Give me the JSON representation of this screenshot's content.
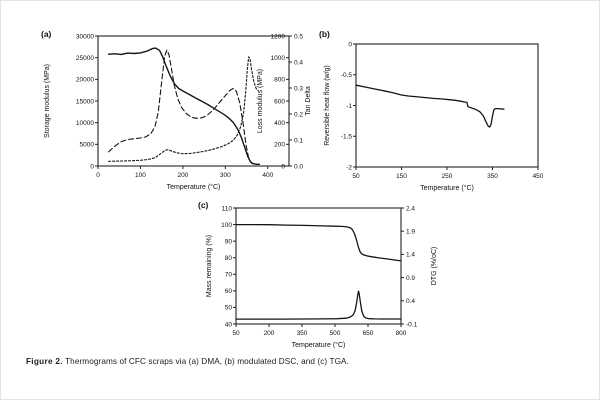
{
  "figure": {
    "caption_label": "Figure 2.",
    "caption_text": "Thermograms of CFC scraps via (a) DMA, (b) modulated DSC, and (c) TGA."
  },
  "chart_data": [
    {
      "id": "dma",
      "panel_label": "(a)",
      "type": "line",
      "xlabel": "Temperature (°C)",
      "x_axis": {
        "min": 0,
        "max": 450,
        "tick_values": [
          0,
          100,
          200,
          300,
          400
        ],
        "tick_labels": [
          "0",
          "100",
          "200",
          "300",
          "400"
        ]
      },
      "y_axes": [
        {
          "id": "storage",
          "side": "left",
          "label": "Storage modulus (MPa)",
          "min": 0,
          "max": 30000,
          "tick_values": [
            0,
            5000,
            10000,
            15000,
            20000,
            25000,
            30000
          ],
          "tick_labels": [
            "0",
            "5000",
            "10000",
            "15000",
            "20000",
            "25000",
            "30000"
          ]
        },
        {
          "id": "loss",
          "side": "right-in",
          "label": "Loss modulus (MPa)",
          "min": 0,
          "max": 1200,
          "tick_values": [
            0,
            200,
            400,
            600,
            800,
            1000,
            1200
          ],
          "tick_labels": [
            "0",
            "200",
            "400",
            "600",
            "800",
            "1000",
            "1200"
          ]
        },
        {
          "id": "tan",
          "side": "right-out",
          "label": "Tan Delta",
          "min": 0,
          "max": 0.5,
          "tick_values": [
            0,
            0.1,
            0.2,
            0.3,
            0.4,
            0.5
          ],
          "tick_labels": [
            "0.0",
            "0.1",
            "0.2",
            "0.3",
            "0.4",
            "0.5"
          ]
        }
      ],
      "series": [
        {
          "id": "storage",
          "name": "Storage modulus",
          "axis": "storage",
          "dash": "solid",
          "width": 1.4,
          "points": [
            [
              25,
              25800
            ],
            [
              40,
              25900
            ],
            [
              55,
              25750
            ],
            [
              70,
              26050
            ],
            [
              85,
              25950
            ],
            [
              100,
              26100
            ],
            [
              115,
              26500
            ],
            [
              128,
              27100
            ],
            [
              136,
              27200
            ],
            [
              145,
              26700
            ],
            [
              152,
              25300
            ],
            [
              160,
              23200
            ],
            [
              170,
              20800
            ],
            [
              180,
              19000
            ],
            [
              190,
              17900
            ],
            [
              200,
              17300
            ],
            [
              215,
              16500
            ],
            [
              230,
              15700
            ],
            [
              245,
              14900
            ],
            [
              260,
              14100
            ],
            [
              275,
              13200
            ],
            [
              290,
              12300
            ],
            [
              300,
              11700
            ],
            [
              310,
              10900
            ],
            [
              320,
              9900
            ],
            [
              330,
              8300
            ],
            [
              338,
              6500
            ],
            [
              346,
              4200
            ],
            [
              353,
              2200
            ],
            [
              359,
              1000
            ],
            [
              365,
              550
            ],
            [
              372,
              420
            ],
            [
              380,
              400
            ]
          ]
        },
        {
          "id": "loss",
          "name": "Loss modulus",
          "axis": "loss",
          "dash": "long",
          "width": 1.1,
          "points": [
            [
              25,
              130
            ],
            [
              40,
              185
            ],
            [
              55,
              225
            ],
            [
              70,
              245
            ],
            [
              85,
              252
            ],
            [
              100,
              258
            ],
            [
              112,
              268
            ],
            [
              124,
              295
            ],
            [
              134,
              360
            ],
            [
              142,
              500
            ],
            [
              150,
              780
            ],
            [
              157,
              1010
            ],
            [
              162,
              1070
            ],
            [
              167,
              1030
            ],
            [
              173,
              900
            ],
            [
              180,
              740
            ],
            [
              188,
              620
            ],
            [
              197,
              540
            ],
            [
              208,
              485
            ],
            [
              220,
              450
            ],
            [
              232,
              440
            ],
            [
              245,
              445
            ],
            [
              258,
              470
            ],
            [
              272,
              520
            ],
            [
              286,
              585
            ],
            [
              300,
              650
            ],
            [
              310,
              695
            ],
            [
              318,
              715
            ],
            [
              326,
              690
            ],
            [
              334,
              580
            ],
            [
              342,
              390
            ],
            [
              349,
              190
            ],
            [
              355,
              70
            ],
            [
              362,
              25
            ],
            [
              370,
              18
            ],
            [
              378,
              15
            ]
          ]
        },
        {
          "id": "tan",
          "name": "Tan delta",
          "axis": "tan",
          "dash": "short",
          "width": 1.1,
          "points": [
            [
              25,
              0.018
            ],
            [
              50,
              0.019
            ],
            [
              75,
              0.02
            ],
            [
              100,
              0.022
            ],
            [
              118,
              0.025
            ],
            [
              135,
              0.032
            ],
            [
              148,
              0.048
            ],
            [
              158,
              0.06
            ],
            [
              165,
              0.063
            ],
            [
              172,
              0.058
            ],
            [
              185,
              0.051
            ],
            [
              200,
              0.047
            ],
            [
              215,
              0.048
            ],
            [
              230,
              0.051
            ],
            [
              245,
              0.055
            ],
            [
              260,
              0.06
            ],
            [
              275,
              0.066
            ],
            [
              290,
              0.074
            ],
            [
              305,
              0.084
            ],
            [
              318,
              0.098
            ],
            [
              328,
              0.118
            ],
            [
              336,
              0.15
            ],
            [
              343,
              0.205
            ],
            [
              348,
              0.285
            ],
            [
              352,
              0.375
            ],
            [
              355,
              0.42
            ],
            [
              358,
              0.412
            ],
            [
              362,
              0.37
            ],
            [
              367,
              0.325
            ],
            [
              372,
              0.3
            ],
            [
              377,
              0.29
            ]
          ]
        }
      ]
    },
    {
      "id": "dsc",
      "panel_label": "(b)",
      "type": "line",
      "xlabel": "Temperature (°C)",
      "x_axis": {
        "min": 50,
        "max": 450,
        "tick_values": [
          50,
          150,
          250,
          350,
          450
        ],
        "tick_labels": [
          "50",
          "150",
          "250",
          "350",
          "450"
        ]
      },
      "y_axes": [
        {
          "id": "heat",
          "side": "left",
          "label": "Reversible heat flow (w/g)",
          "min": -2,
          "max": 0,
          "tick_values": [
            0,
            -0.5,
            -1,
            -1.5,
            -2
          ],
          "tick_labels": [
            "0",
            "-0.5",
            "-1",
            "-1.5",
            "-2"
          ]
        }
      ],
      "series": [
        {
          "id": "heat",
          "name": "Reversible heat flow",
          "axis": "heat",
          "dash": "solid",
          "width": 1.3,
          "points": [
            [
              50,
              -0.67
            ],
            [
              70,
              -0.7
            ],
            [
              90,
              -0.73
            ],
            [
              110,
              -0.76
            ],
            [
              130,
              -0.79
            ],
            [
              150,
              -0.83
            ],
            [
              165,
              -0.845
            ],
            [
              180,
              -0.855
            ],
            [
              200,
              -0.87
            ],
            [
              220,
              -0.885
            ],
            [
              240,
              -0.895
            ],
            [
              255,
              -0.905
            ],
            [
              268,
              -0.915
            ],
            [
              280,
              -0.93
            ],
            [
              290,
              -0.945
            ],
            [
              294,
              -0.95
            ],
            [
              296,
              -1.02
            ],
            [
              302,
              -1.035
            ],
            [
              312,
              -1.06
            ],
            [
              322,
              -1.1
            ],
            [
              330,
              -1.17
            ],
            [
              336,
              -1.27
            ],
            [
              341,
              -1.34
            ],
            [
              344,
              -1.35
            ],
            [
              347,
              -1.3
            ],
            [
              350,
              -1.17
            ],
            [
              353,
              -1.07
            ],
            [
              356,
              -1.05
            ],
            [
              362,
              -1.05
            ],
            [
              368,
              -1.055
            ],
            [
              375,
              -1.06
            ]
          ]
        }
      ]
    },
    {
      "id": "tga",
      "panel_label": "(c)",
      "type": "line",
      "xlabel": "Temperature (°C)",
      "x_axis": {
        "min": 50,
        "max": 800,
        "tick_values": [
          50,
          200,
          350,
          500,
          650,
          800
        ],
        "tick_labels": [
          "50",
          "200",
          "350",
          "500",
          "650",
          "800"
        ]
      },
      "y_axes": [
        {
          "id": "mass",
          "side": "left",
          "label": "Mass remaining (%)",
          "min": 40,
          "max": 110,
          "tick_values": [
            40,
            50,
            60,
            70,
            80,
            90,
            100,
            110
          ],
          "tick_labels": [
            "40",
            "50",
            "60",
            "70",
            "80",
            "90",
            "100",
            "110"
          ]
        },
        {
          "id": "dtg",
          "side": "right-out",
          "label": "DTG (%/oC)",
          "min": -0.1,
          "max": 2.4,
          "tick_values": [
            -0.1,
            0.4,
            0.9,
            1.4,
            1.9,
            2.4
          ],
          "tick_labels": [
            "-0.1",
            "0.4",
            "0.9",
            "1.4",
            "1.9",
            "2.4"
          ]
        }
      ],
      "series": [
        {
          "id": "mass",
          "name": "Mass remaining",
          "axis": "mass",
          "dash": "solid",
          "width": 1.3,
          "points": [
            [
              50,
              100
            ],
            [
              120,
              100
            ],
            [
              200,
              99.9
            ],
            [
              280,
              99.7
            ],
            [
              360,
              99.5
            ],
            [
              440,
              99.2
            ],
            [
              500,
              99.0
            ],
            [
              530,
              98.9
            ],
            [
              555,
              98.6
            ],
            [
              570,
              98.0
            ],
            [
              580,
              96.8
            ],
            [
              590,
              94.0
            ],
            [
              598,
              90.5
            ],
            [
              606,
              86.5
            ],
            [
              613,
              83.8
            ],
            [
              620,
              82.5
            ],
            [
              630,
              81.7
            ],
            [
              645,
              81.1
            ],
            [
              665,
              80.6
            ],
            [
              700,
              79.9
            ],
            [
              740,
              79.2
            ],
            [
              770,
              78.6
            ],
            [
              800,
              78.1
            ]
          ]
        },
        {
          "id": "dtg",
          "name": "DTG",
          "axis": "dtg",
          "dash": "solid",
          "width": 1.3,
          "points": [
            [
              50,
              0.005
            ],
            [
              150,
              0.005
            ],
            [
              250,
              0.006
            ],
            [
              350,
              0.007
            ],
            [
              450,
              0.01
            ],
            [
              510,
              0.015
            ],
            [
              550,
              0.025
            ],
            [
              570,
              0.05
            ],
            [
              583,
              0.1
            ],
            [
              592,
              0.2
            ],
            [
              599,
              0.38
            ],
            [
              604,
              0.55
            ],
            [
              607,
              0.61
            ],
            [
              610,
              0.55
            ],
            [
              615,
              0.38
            ],
            [
              622,
              0.18
            ],
            [
              630,
              0.07
            ],
            [
              640,
              0.03
            ],
            [
              655,
              0.015
            ],
            [
              680,
              0.01
            ],
            [
              720,
              0.008
            ],
            [
              800,
              0.008
            ]
          ]
        }
      ]
    }
  ]
}
